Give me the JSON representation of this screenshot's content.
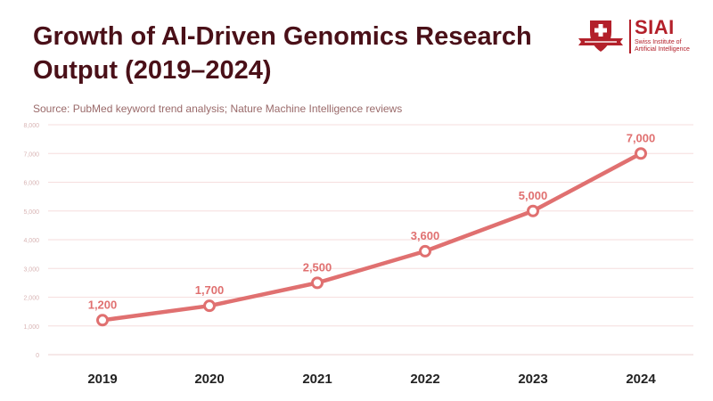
{
  "header": {
    "title": "Growth of AI-Driven Genomics Research Output (2019–2024)",
    "source": "Source: PubMed keyword trend analysis; Nature Machine Intelligence reviews"
  },
  "logo": {
    "brand": "SIAI",
    "subtitle_line1": "Swiss Institute of",
    "subtitle_line2": "Artificial Intelligence"
  },
  "colors": {
    "line": "#e07070",
    "title": "#4a1018",
    "grid": "#f6dede",
    "tick": "#d8b4b4",
    "label": "#e07070",
    "brand": "#b3202a"
  },
  "chart_data": {
    "type": "line",
    "title": "Growth of AI-Driven Genomics Research Output (2019–2024)",
    "xlabel": "",
    "ylabel": "",
    "categories": [
      "2019",
      "2020",
      "2021",
      "2022",
      "2023",
      "2024"
    ],
    "series": [
      {
        "name": "Research output",
        "values": [
          1200,
          1700,
          2500,
          3600,
          5000,
          7000
        ]
      }
    ],
    "data_labels": [
      "1,200",
      "1,700",
      "2,500",
      "3,600",
      "5,000",
      "7,000"
    ],
    "ylim": [
      0,
      8000
    ],
    "yticks": [
      0,
      1000,
      2000,
      3000,
      4000,
      5000,
      6000,
      7000,
      8000
    ],
    "ytick_labels": [
      "0",
      "1,000",
      "2,000",
      "3,000",
      "4,000",
      "5,000",
      "6,000",
      "7,000",
      "8,000"
    ],
    "grid": true,
    "legend": "none"
  }
}
